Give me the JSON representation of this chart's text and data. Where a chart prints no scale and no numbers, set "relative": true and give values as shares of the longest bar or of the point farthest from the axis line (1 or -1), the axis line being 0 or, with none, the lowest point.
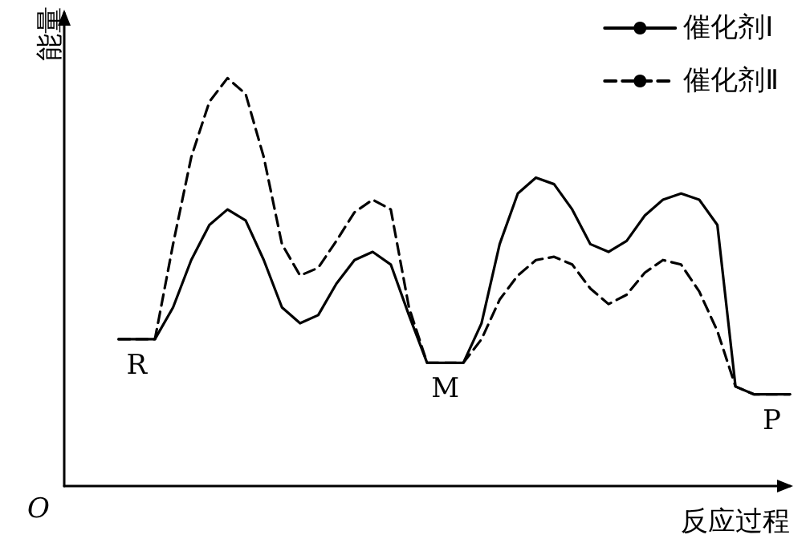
{
  "chart_data": {
    "type": "line",
    "relative": true,
    "xlabel": "反应过程",
    "ylabel": "能量",
    "grid": false,
    "legend": "top right",
    "marker": "none",
    "annotations": [
      "O",
      "R",
      "M",
      "P"
    ],
    "categories": [
      null,
      null,
      null,
      null,
      null,
      null,
      null,
      null,
      null,
      null,
      null,
      null,
      null,
      null,
      null,
      null,
      null,
      null,
      null,
      null,
      null,
      null,
      null,
      null,
      null,
      null,
      null,
      null,
      null,
      null,
      null,
      null,
      null,
      null,
      null,
      null,
      null,
      null,
      null,
      null,
      null
    ],
    "series": [
      {
        "name": "催化剂Ⅰ",
        "color": "#000000",
        "line_style": "solid",
        "values": [
          null,
          null,
          null,
          0.36,
          0.36,
          0.36,
          0.438,
          0.554,
          0.64,
          0.678,
          0.651,
          0.554,
          0.438,
          0.399,
          0.419,
          0.496,
          0.554,
          0.574,
          0.543,
          0.419,
          0.302,
          0.302,
          0.302,
          0.399,
          0.593,
          0.717,
          0.756,
          0.74,
          0.678,
          0.593,
          0.574,
          0.601,
          0.663,
          0.702,
          0.717,
          0.702,
          0.64,
          0.244,
          0.225,
          0.225,
          0.225
        ]
      },
      {
        "name": "催化剂Ⅱ",
        "color": "#000000",
        "line_style": "dashed",
        "values": [
          null,
          null,
          null,
          0.36,
          0.36,
          0.36,
          0.593,
          0.806,
          0.942,
          1.0,
          0.961,
          0.806,
          0.593,
          0.516,
          0.535,
          0.601,
          0.671,
          0.702,
          0.678,
          0.438,
          0.302,
          0.302,
          0.302,
          0.36,
          0.457,
          0.516,
          0.554,
          0.562,
          0.543,
          0.484,
          0.446,
          0.469,
          0.523,
          0.554,
          0.543,
          0.477,
          0.38,
          0.244,
          0.225,
          0.225,
          0.225
        ]
      }
    ]
  }
}
